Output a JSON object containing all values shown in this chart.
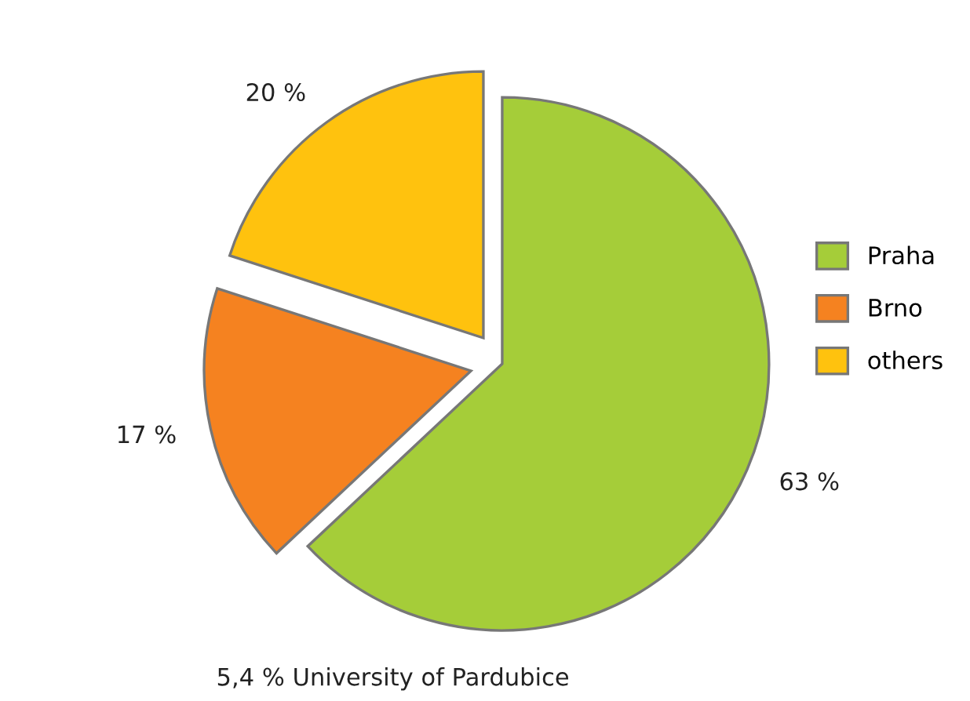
{
  "chart_data": {
    "type": "pie",
    "categories": [
      "Praha",
      "Brno",
      "others"
    ],
    "values": [
      63,
      17,
      20
    ],
    "colors": [
      "#a5cd39",
      "#f58220",
      "#ffc20e"
    ],
    "value_labels": [
      "63 %",
      "17 %",
      "20 %"
    ],
    "legend": "right",
    "annotations": [
      "5,4 % University of Pardubice"
    ]
  }
}
